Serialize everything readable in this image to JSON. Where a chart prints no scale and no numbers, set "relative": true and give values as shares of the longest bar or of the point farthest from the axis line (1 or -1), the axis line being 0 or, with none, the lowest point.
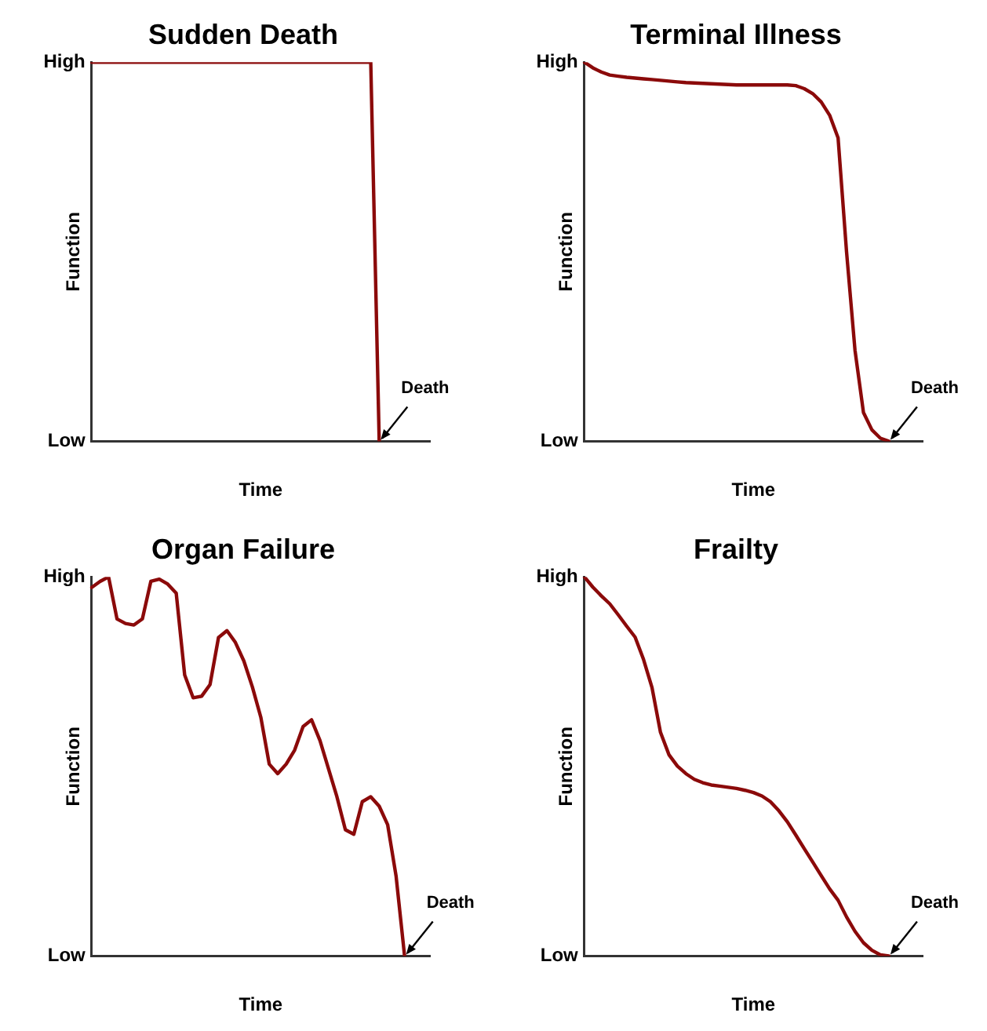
{
  "chart_data": [
    {
      "type": "line",
      "title": "Sudden Death",
      "xlabel": "Time",
      "ylabel": "Function",
      "relative": true,
      "marker": "none",
      "categories": [
        null,
        null,
        null,
        null,
        null,
        null,
        null,
        null,
        null,
        null,
        null,
        null,
        null,
        null,
        null,
        null,
        null,
        null,
        null,
        null,
        null,
        null,
        null,
        null,
        null,
        null,
        null,
        null,
        null,
        null,
        null,
        null,
        null,
        null,
        null,
        null,
        null,
        null,
        null,
        null,
        null
      ],
      "series": [
        {
          "color": "#8b0a0a",
          "values": [
            1,
            1,
            1,
            1,
            1,
            1,
            1,
            1,
            1,
            1,
            1,
            1,
            1,
            1,
            1,
            1,
            1,
            1,
            1,
            1,
            1,
            1,
            1,
            1,
            1,
            1,
            1,
            1,
            1,
            1,
            1,
            1,
            1,
            1,
            0,
            null,
            null,
            null,
            null,
            null,
            null
          ]
        }
      ],
      "annotations": [
        "High",
        "Low",
        "Death"
      ]
    },
    {
      "type": "line",
      "title": "Terminal Illness",
      "xlabel": "Time",
      "ylabel": "Function",
      "relative": true,
      "marker": "none",
      "categories": [
        null,
        null,
        null,
        null,
        null,
        null,
        null,
        null,
        null,
        null,
        null,
        null,
        null,
        null,
        null,
        null,
        null,
        null,
        null,
        null,
        null,
        null,
        null,
        null,
        null,
        null,
        null,
        null,
        null,
        null,
        null,
        null,
        null,
        null,
        null,
        null,
        null,
        null,
        null,
        null,
        null
      ],
      "series": [
        {
          "color": "#8b0a0a",
          "values": [
            1,
            0.985,
            0.974,
            0.966,
            0.963,
            0.96,
            0.958,
            0.956,
            0.954,
            0.952,
            0.95,
            0.948,
            0.946,
            0.945,
            0.944,
            0.943,
            0.942,
            0.941,
            0.94,
            0.94,
            0.94,
            0.94,
            0.94,
            0.94,
            0.94,
            0.938,
            0.93,
            0.917,
            0.895,
            0.86,
            0.8,
            0.5,
            0.24,
            0.076,
            0.03,
            0.008,
            0,
            null,
            null,
            null,
            null
          ]
        }
      ],
      "annotations": [
        "High",
        "Low",
        "Death"
      ]
    },
    {
      "type": "line",
      "title": "Organ Failure",
      "xlabel": "Time",
      "ylabel": "Function",
      "relative": true,
      "marker": "none",
      "categories": [
        null,
        null,
        null,
        null,
        null,
        null,
        null,
        null,
        null,
        null,
        null,
        null,
        null,
        null,
        null,
        null,
        null,
        null,
        null,
        null,
        null,
        null,
        null,
        null,
        null,
        null,
        null,
        null,
        null,
        null,
        null,
        null,
        null,
        null,
        null,
        null,
        null,
        null,
        null,
        null,
        null
      ],
      "series": [
        {
          "color": "#8b0a0a",
          "values": [
            0.972,
            0.988,
            1,
            0.889,
            0.877,
            0.873,
            0.889,
            0.988,
            0.994,
            0.981,
            0.957,
            0.741,
            0.681,
            0.685,
            0.716,
            0.84,
            0.858,
            0.827,
            0.778,
            0.71,
            0.63,
            0.506,
            0.481,
            0.506,
            0.543,
            0.605,
            0.623,
            0.568,
            0.494,
            0.42,
            0.333,
            0.321,
            0.407,
            0.42,
            0.395,
            0.346,
            0.21,
            0,
            null,
            null,
            null
          ]
        }
      ],
      "annotations": [
        "High",
        "Low",
        "Death"
      ]
    },
    {
      "type": "line",
      "title": "Frailty",
      "xlabel": "Time",
      "ylabel": "Function",
      "relative": true,
      "marker": "none",
      "categories": [
        null,
        null,
        null,
        null,
        null,
        null,
        null,
        null,
        null,
        null,
        null,
        null,
        null,
        null,
        null,
        null,
        null,
        null,
        null,
        null,
        null,
        null,
        null,
        null,
        null,
        null,
        null,
        null,
        null,
        null,
        null,
        null,
        null,
        null,
        null,
        null,
        null,
        null,
        null,
        null,
        null
      ],
      "series": [
        {
          "color": "#8b0a0a",
          "values": [
            1,
            0.973,
            0.95,
            0.929,
            0.9,
            0.87,
            0.841,
            0.782,
            0.708,
            0.59,
            0.531,
            0.501,
            0.481,
            0.466,
            0.457,
            0.451,
            0.448,
            0.445,
            0.442,
            0.437,
            0.431,
            0.422,
            0.407,
            0.383,
            0.354,
            0.319,
            0.283,
            0.248,
            0.212,
            0.177,
            0.147,
            0.103,
            0.065,
            0.035,
            0.015,
            0.003,
            0,
            null,
            null,
            null,
            null
          ]
        }
      ],
      "annotations": [
        "High",
        "Low",
        "Death"
      ]
    }
  ]
}
